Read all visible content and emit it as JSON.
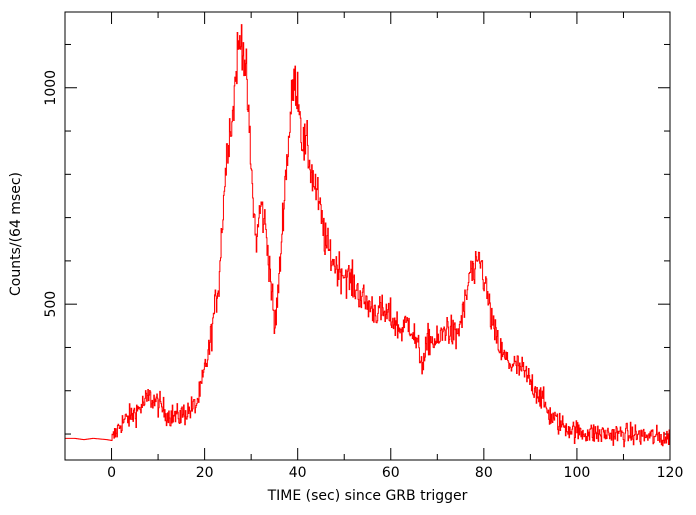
{
  "chart_data": {
    "type": "line",
    "title": "",
    "xlabel": "TIME (sec) since GRB trigger",
    "ylabel": "Counts/(64 msec)",
    "xlim": [
      -10,
      120
    ],
    "ylim": [
      140,
      1175
    ],
    "x_ticks": [
      0,
      20,
      40,
      60,
      80,
      100,
      120
    ],
    "x_tick_labels": [
      "0",
      "20",
      "40",
      "60",
      "80",
      "100",
      "120"
    ],
    "y_ticks": [
      500,
      1000
    ],
    "y_tick_labels": [
      "500",
      "1000"
    ],
    "grid": false,
    "legend": "none",
    "series_color": "#ff0000",
    "series": [
      {
        "x": [
          -10,
          -8,
          -6,
          -4,
          -2,
          -1,
          0,
          2,
          4,
          6,
          8,
          10,
          12,
          14,
          16,
          18,
          19,
          20,
          21,
          22,
          23,
          24,
          25,
          26,
          27,
          28,
          29,
          30,
          31,
          32,
          33,
          34,
          35,
          36,
          37,
          38,
          39,
          40,
          41,
          42,
          43,
          44,
          45,
          46,
          48,
          50,
          52,
          54,
          56,
          58,
          60,
          62,
          64,
          66,
          67,
          68,
          70,
          72,
          74,
          76,
          77,
          78,
          79,
          80,
          81,
          82,
          84,
          86,
          88,
          90,
          92,
          94,
          96,
          98,
          100,
          105,
          110,
          115,
          120
        ],
        "y": [
          190,
          190,
          187,
          190,
          188,
          187,
          185,
          225,
          240,
          260,
          285,
          270,
          245,
          240,
          250,
          265,
          295,
          350,
          400,
          480,
          550,
          740,
          890,
          935,
          1080,
          1120,
          1010,
          800,
          640,
          730,
          680,
          580,
          440,
          560,
          750,
          880,
          1010,
          1000,
          870,
          860,
          800,
          760,
          700,
          640,
          590,
          570,
          545,
          510,
          490,
          480,
          470,
          440,
          460,
          390,
          360,
          420,
          410,
          450,
          420,
          500,
          580,
          560,
          610,
          560,
          500,
          440,
          380,
          360,
          350,
          320,
          290,
          245,
          225,
          215,
          205,
          200,
          200,
          195,
          190
        ]
      }
    ]
  }
}
